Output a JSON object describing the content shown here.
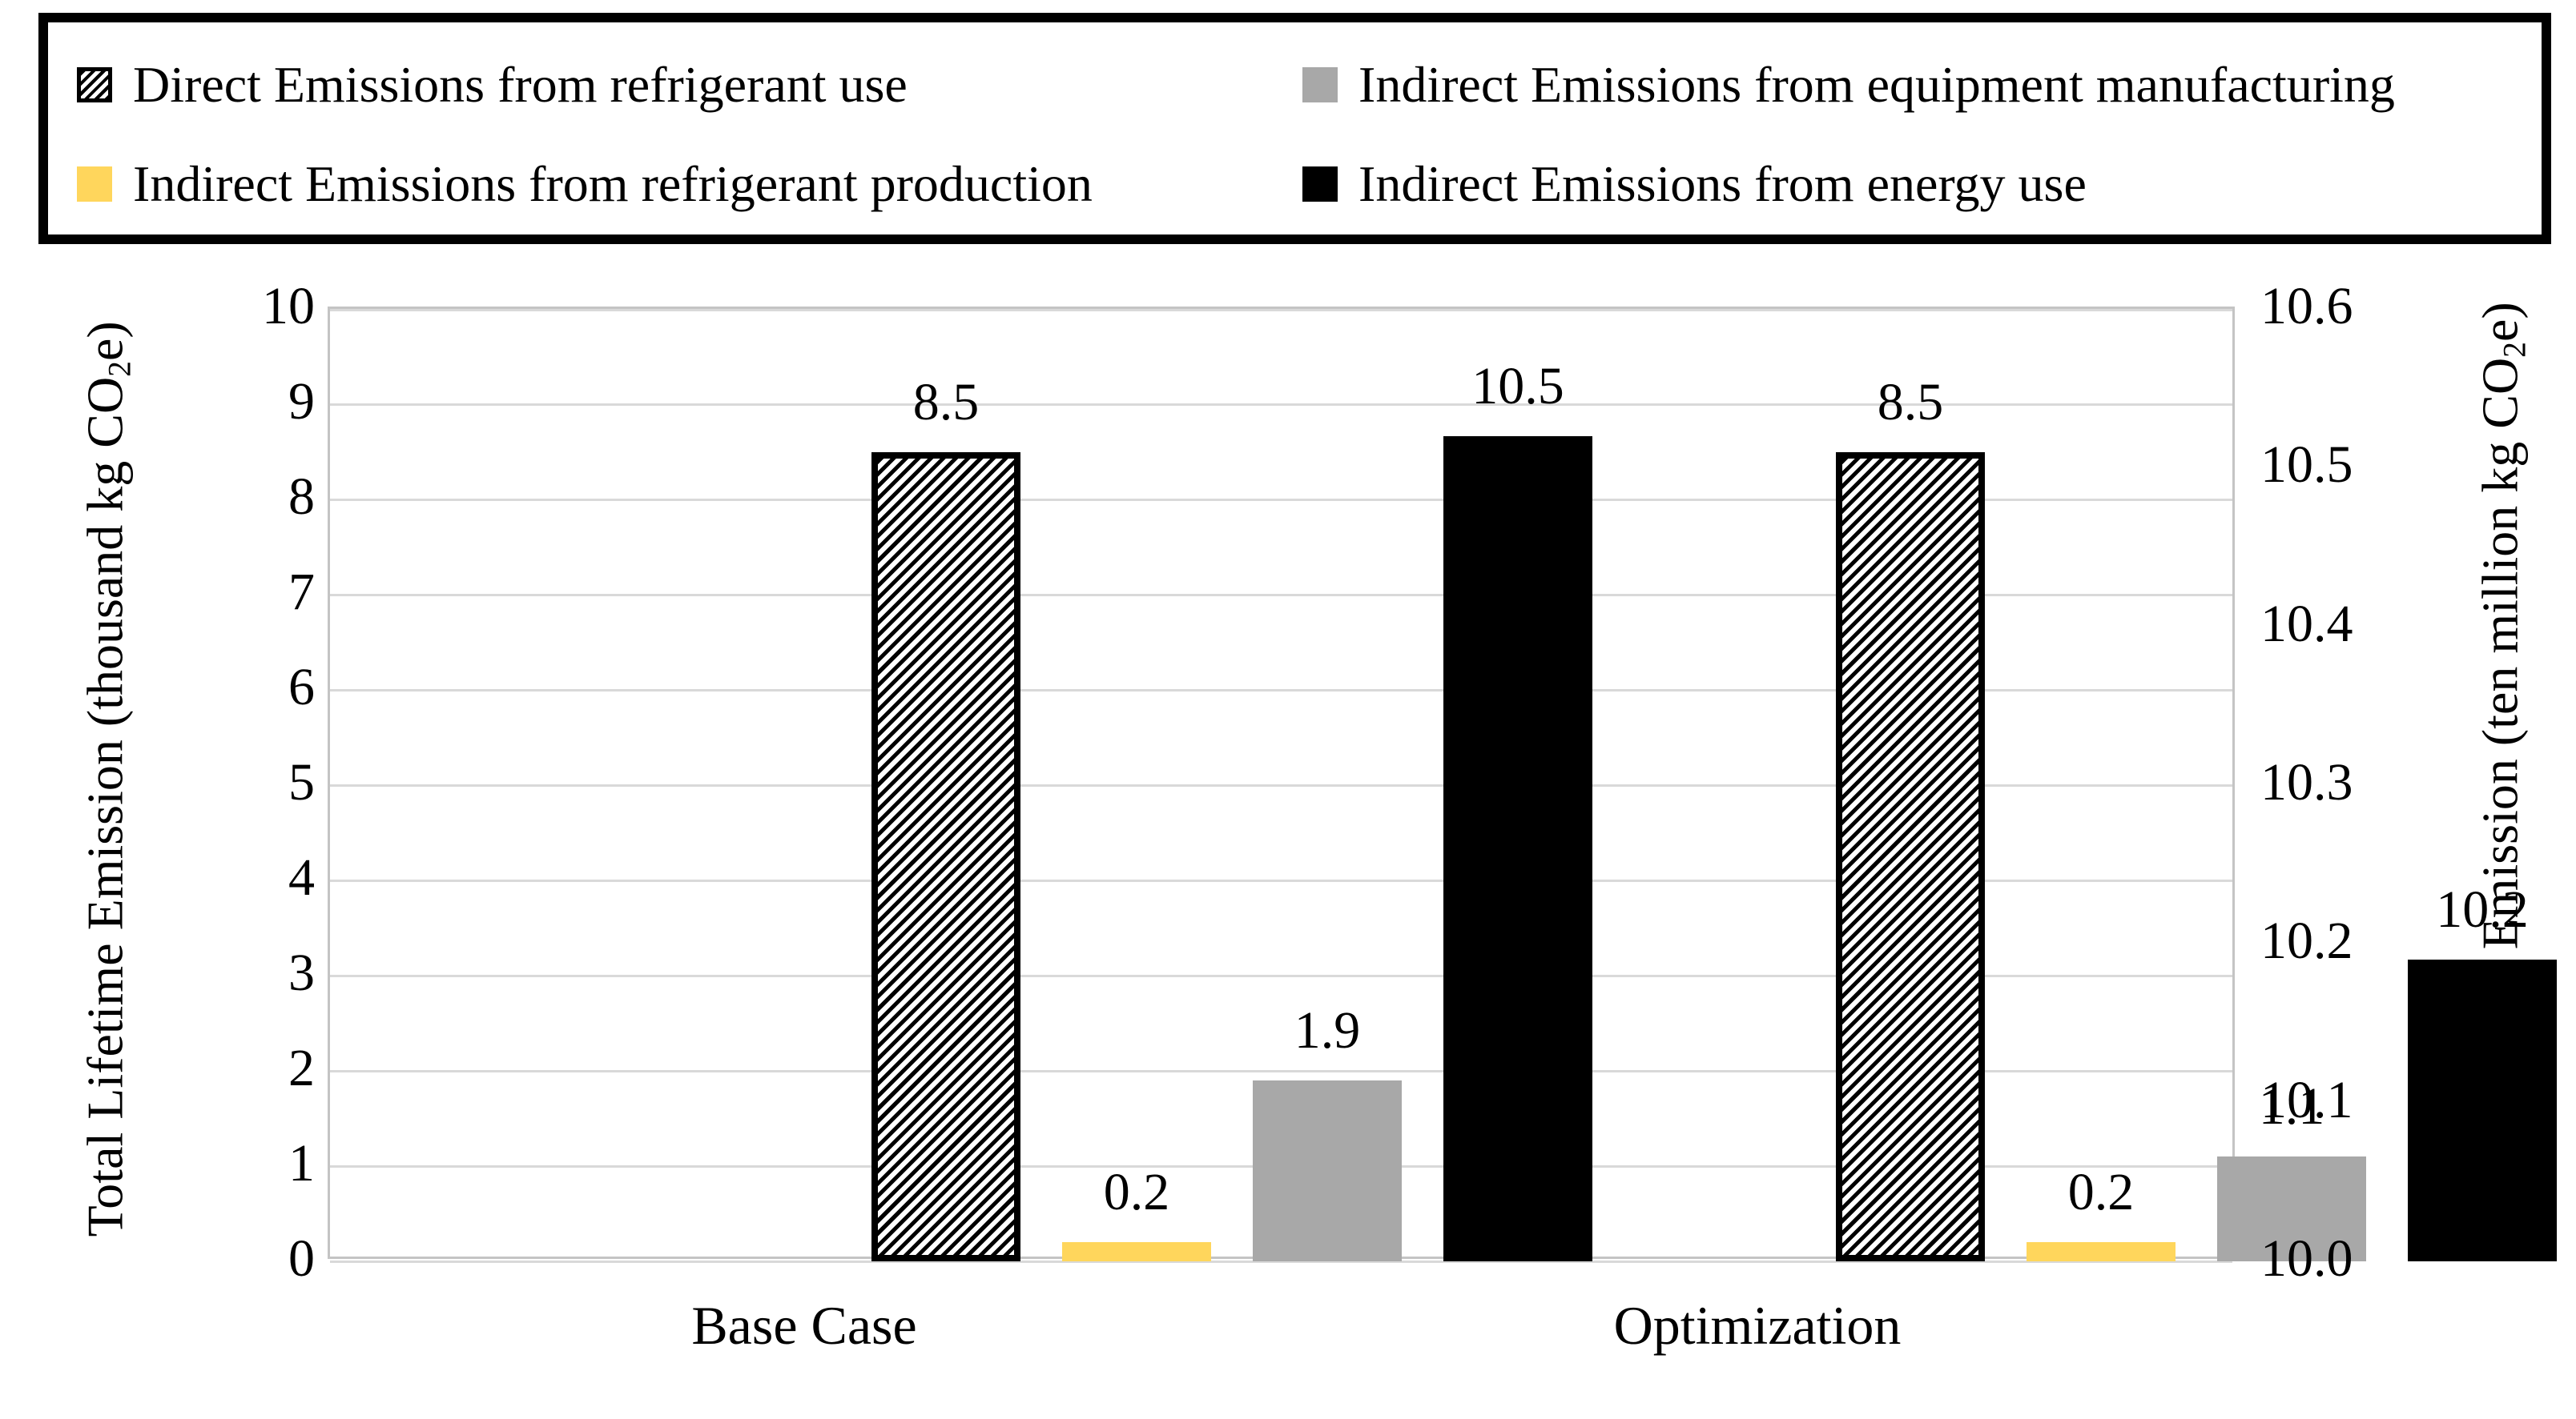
{
  "legend": {
    "border_color": "#000000",
    "items": [
      {
        "key": "direct-refrigerant-use",
        "label": "Direct Emissions from refrigerant use",
        "swatch": "hatch"
      },
      {
        "key": "equipment-manufacturing",
        "label": "Indirect Emissions from equipment manufacturing",
        "swatch": "gray"
      },
      {
        "key": "refrigerant-production",
        "label": "Indirect Emissions from refrigerant production",
        "swatch": "yellow"
      },
      {
        "key": "energy-use",
        "label": "Indirect Emissions from energy use",
        "swatch": "black"
      }
    ]
  },
  "colors": {
    "yellow": "#FFD65C",
    "gray": "#A8A8A8",
    "black": "#000000",
    "gridline": "#D9D9D9",
    "plot_border": "#C4C4C4"
  },
  "chart_data": {
    "type": "bar",
    "title": "",
    "categories": [
      "Base Case",
      "Optimization"
    ],
    "series": [
      {
        "key": "direct-refrigerant-use",
        "name": "Direct Emissions from refrigerant use",
        "swatch": "hatch",
        "pattern": "diagonal-hatch",
        "axis": "left",
        "values": [
          8.5,
          8.5
        ],
        "labels": [
          "8.5",
          "8.5"
        ]
      },
      {
        "key": "refrigerant-production",
        "name": "Indirect Emissions from refrigerant production",
        "swatch": "yellow",
        "color": "#FFD65C",
        "axis": "left",
        "values": [
          0.2,
          0.2
        ],
        "labels": [
          "0.2",
          "0.2"
        ]
      },
      {
        "key": "equipment-manufacturing",
        "name": "Indirect Emissions from equipment manufacturing",
        "swatch": "gray",
        "color": "#A8A8A8",
        "axis": "left",
        "values": [
          1.9,
          1.1
        ],
        "labels": [
          "1.9",
          "1.1"
        ]
      },
      {
        "key": "energy-use",
        "name": "Indirect Emissions from energy use",
        "swatch": "black",
        "color": "#000000",
        "axis": "right",
        "values": [
          10.52,
          10.19
        ],
        "labels": [
          "10.5",
          "10.2"
        ]
      }
    ],
    "axes": {
      "left": {
        "min": 0,
        "max": 10,
        "ticks": [
          "0",
          "1",
          "2",
          "3",
          "4",
          "5",
          "6",
          "7",
          "8",
          "9",
          "10"
        ],
        "title_pre": "Total Lifetime Emission (thousand kg CO",
        "title_sub": "2",
        "title_post": "e)"
      },
      "right": {
        "min": 10,
        "max": 10.6,
        "ticks": [
          "10.0",
          "10.1",
          "10.2",
          "10.3",
          "10.4",
          "10.5",
          "10.6"
        ],
        "title_pre": "Total Lifetime Emission (ten million kg CO",
        "title_sub": "2",
        "title_post": "e)"
      }
    },
    "legend_position": "top",
    "grid": true
  }
}
